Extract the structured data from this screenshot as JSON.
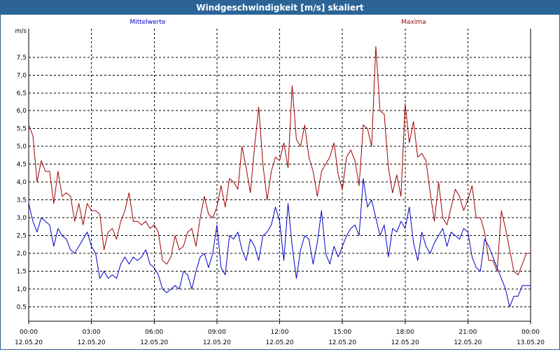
{
  "window": {
    "title": "Windgeschwindigkeit [m/s] skaliert"
  },
  "colors": {
    "mean": "#0000c8",
    "max": "#a00000",
    "grid": "#000000",
    "titlebar": "#2b6597"
  },
  "chart_data": {
    "type": "line",
    "title": "Windgeschwindigkeit [m/s] skaliert",
    "ylabel": "m/s",
    "ylim": [
      0.1,
      8.3
    ],
    "xlim_hours": [
      0,
      24
    ],
    "yticks": [
      "0,5",
      "1,0",
      "1,5",
      "2,0",
      "2,5",
      "3,0",
      "3,5",
      "4,0",
      "4,5",
      "5,0",
      "5,5",
      "6,0",
      "6,5",
      "7,0",
      "7,5"
    ],
    "xticks": [
      {
        "time": "00:00",
        "date": "12.05.20"
      },
      {
        "time": "03:00",
        "date": "12.05.20"
      },
      {
        "time": "06:00",
        "date": "12.05.20"
      },
      {
        "time": "09:00",
        "date": "12.05.20"
      },
      {
        "time": "12:00",
        "date": "12.05.20"
      },
      {
        "time": "15:00",
        "date": "12.05.20"
      },
      {
        "time": "18:00",
        "date": "12.05.20"
      },
      {
        "time": "21:00",
        "date": "12.05.20"
      },
      {
        "time": "00:00",
        "date": "13.05.20"
      }
    ],
    "grid": true,
    "series": [
      {
        "name": "Mittelwerte",
        "color": "#0000c8",
        "x_hours": [
          0,
          0.2,
          0.4,
          0.6,
          0.8,
          1.0,
          1.2,
          1.4,
          1.6,
          1.8,
          2.0,
          2.2,
          2.4,
          2.6,
          2.8,
          3.0,
          3.2,
          3.4,
          3.6,
          3.8,
          4.0,
          4.2,
          4.4,
          4.6,
          4.8,
          5.0,
          5.2,
          5.4,
          5.6,
          5.8,
          6.0,
          6.2,
          6.4,
          6.6,
          6.8,
          7.0,
          7.2,
          7.4,
          7.6,
          7.8,
          8.0,
          8.2,
          8.4,
          8.6,
          8.8,
          9.0,
          9.2,
          9.4,
          9.6,
          9.8,
          10.0,
          10.2,
          10.4,
          10.6,
          10.8,
          11.0,
          11.2,
          11.4,
          11.6,
          11.8,
          12.0,
          12.2,
          12.4,
          12.6,
          12.8,
          13.0,
          13.2,
          13.4,
          13.6,
          13.8,
          14.0,
          14.2,
          14.4,
          14.6,
          14.8,
          15.0,
          15.2,
          15.4,
          15.6,
          15.8,
          16.0,
          16.2,
          16.4,
          16.6,
          16.8,
          17.0,
          17.2,
          17.4,
          17.6,
          17.8,
          18.0,
          18.2,
          18.4,
          18.6,
          18.8,
          19.0,
          19.2,
          19.4,
          19.6,
          19.8,
          20.0,
          20.2,
          20.4,
          20.6,
          20.8,
          21.0,
          21.2,
          21.4,
          21.6,
          21.8,
          22.0,
          22.2,
          22.4,
          22.6,
          22.8,
          23.0,
          23.2,
          23.4,
          23.6,
          23.8,
          24.0
        ],
        "values": [
          3.4,
          2.9,
          2.6,
          3.0,
          2.9,
          2.8,
          2.2,
          2.7,
          2.5,
          2.4,
          2.1,
          2.0,
          2.2,
          2.4,
          2.6,
          2.2,
          2.0,
          1.3,
          1.5,
          1.3,
          1.4,
          1.3,
          1.7,
          1.9,
          1.7,
          1.9,
          1.8,
          1.9,
          2.1,
          1.7,
          1.6,
          1.4,
          1.0,
          0.9,
          1.0,
          1.1,
          1.0,
          1.5,
          1.4,
          1.0,
          1.5,
          1.9,
          2.0,
          1.6,
          2.0,
          2.8,
          1.6,
          1.4,
          2.5,
          2.4,
          2.6,
          2.1,
          1.8,
          2.4,
          2.2,
          1.8,
          2.5,
          2.6,
          2.8,
          3.3,
          2.9,
          1.8,
          3.4,
          2.2,
          1.3,
          2.1,
          2.5,
          2.4,
          1.7,
          2.3,
          3.2,
          2.0,
          1.7,
          2.2,
          1.9,
          2.2,
          2.5,
          2.7,
          2.8,
          2.5,
          4.1,
          3.3,
          3.5,
          3.0,
          2.5,
          2.8,
          1.9,
          2.7,
          2.6,
          2.9,
          2.7,
          3.3,
          2.3,
          1.8,
          2.6,
          2.2,
          2.0,
          2.3,
          2.5,
          2.7,
          2.2,
          2.6,
          2.5,
          2.4,
          2.7,
          2.6,
          1.9,
          1.6,
          1.5,
          2.4,
          2.2,
          1.9,
          1.6,
          1.3,
          1.0,
          0.5,
          0.8,
          0.8,
          1.1,
          1.1,
          1.1
        ]
      },
      {
        "name": "Maxima",
        "color": "#a00000",
        "x_hours": [
          0,
          0.2,
          0.4,
          0.6,
          0.8,
          1.0,
          1.2,
          1.4,
          1.6,
          1.8,
          2.0,
          2.2,
          2.4,
          2.6,
          2.8,
          3.0,
          3.2,
          3.4,
          3.6,
          3.8,
          4.0,
          4.2,
          4.4,
          4.6,
          4.8,
          5.0,
          5.2,
          5.4,
          5.6,
          5.8,
          6.0,
          6.2,
          6.4,
          6.6,
          6.8,
          7.0,
          7.2,
          7.4,
          7.6,
          7.8,
          8.0,
          8.2,
          8.4,
          8.6,
          8.8,
          9.0,
          9.2,
          9.4,
          9.6,
          9.8,
          10.0,
          10.2,
          10.4,
          10.6,
          10.8,
          11.0,
          11.2,
          11.4,
          11.6,
          11.8,
          12.0,
          12.2,
          12.4,
          12.6,
          12.8,
          13.0,
          13.2,
          13.4,
          13.6,
          13.8,
          14.0,
          14.2,
          14.4,
          14.6,
          14.8,
          15.0,
          15.2,
          15.4,
          15.6,
          15.8,
          16.0,
          16.2,
          16.4,
          16.6,
          16.8,
          17.0,
          17.2,
          17.4,
          17.6,
          17.8,
          18.0,
          18.2,
          18.4,
          18.6,
          18.8,
          19.0,
          19.2,
          19.4,
          19.6,
          19.8,
          20.0,
          20.2,
          20.4,
          20.6,
          20.8,
          21.0,
          21.2,
          21.4,
          21.6,
          21.8,
          22.0,
          22.2,
          22.4,
          22.6,
          22.8,
          23.0,
          23.2,
          23.4,
          23.6,
          23.8,
          24.0
        ],
        "values": [
          5.6,
          5.3,
          4.0,
          4.6,
          4.3,
          4.3,
          3.4,
          4.3,
          3.6,
          3.7,
          3.6,
          2.9,
          3.4,
          2.8,
          3.4,
          3.2,
          3.2,
          3.1,
          2.1,
          2.6,
          2.7,
          2.4,
          2.9,
          3.2,
          3.7,
          2.9,
          2.9,
          2.8,
          2.9,
          2.7,
          2.8,
          2.6,
          1.8,
          1.7,
          1.9,
          2.5,
          2.1,
          2.2,
          2.6,
          2.7,
          2.2,
          3.0,
          3.6,
          3.1,
          3.0,
          3.3,
          3.9,
          3.3,
          4.1,
          4.0,
          3.8,
          5.0,
          4.4,
          3.7,
          5.0,
          6.1,
          4.5,
          3.5,
          4.3,
          4.7,
          4.6,
          5.1,
          4.4,
          6.7,
          5.2,
          5.0,
          5.6,
          4.7,
          4.3,
          3.6,
          4.3,
          4.5,
          4.7,
          5.1,
          4.2,
          3.8,
          4.7,
          4.9,
          4.6,
          3.9,
          5.6,
          5.5,
          5.0,
          7.8,
          6.0,
          5.9,
          4.4,
          3.7,
          4.2,
          3.6,
          6.2,
          5.1,
          5.7,
          4.7,
          4.8,
          4.6,
          3.7,
          2.9,
          4.0,
          3.0,
          2.8,
          3.3,
          3.8,
          3.6,
          3.2,
          3.5,
          3.9,
          3.0,
          3.0,
          2.6,
          1.8,
          1.8,
          1.5,
          3.2,
          2.7,
          2.1,
          1.5,
          1.4,
          1.7,
          2.0,
          2.0
        ]
      }
    ]
  }
}
